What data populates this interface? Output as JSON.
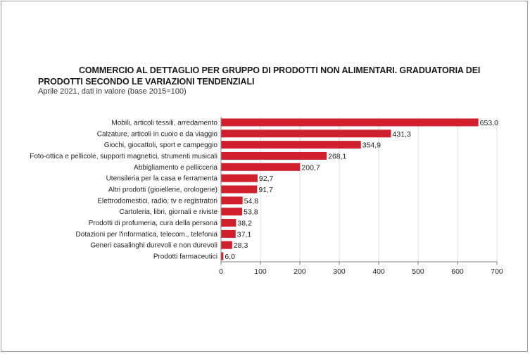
{
  "chart_data": {
    "type": "bar",
    "orientation": "horizontal",
    "title": "COMMERCIO AL DETTAGLIO PER GRUPPO DI PRODOTTI NON ALIMENTARI. GRADUATORIA DEI PRODOTTI SECONDO LE VARIAZIONI TENDENZIALI",
    "subtitle": "Aprile 2021, dati in valore (base 2015=100)",
    "categories": [
      "Mobili, articoli tessili, arredamento",
      "Calzature, articoli in cuoio e da viaggio",
      "Giochi, giocattoli, sport e campeggio",
      "Foto-ottica e pellicole, supporti magnetici, strumenti  musicali",
      "Abbigliamento e pellicceria",
      "Utensileria per la casa e ferramenta",
      "Altri prodotti (gioiellerie, orologerie)",
      "Elettrodomestici, radio, tv e registratori",
      "Cartoleria, libri, giornali e riviste",
      "Prodotti di profumeria, cura della persona",
      "Dotazioni per l'informatica, telecom., telefonia",
      "Generi casalinghi durevoli e non durevoli",
      "Prodotti farmaceutici"
    ],
    "values": [
      653.0,
      431.3,
      354.9,
      268.1,
      200.7,
      92.7,
      91.7,
      54.8,
      53.8,
      38.2,
      37.1,
      28.3,
      6.0
    ],
    "value_labels": [
      "653,0",
      "431,3",
      "354,9",
      "268,1",
      "200,7",
      "92,7",
      "91,7",
      "54,8",
      "53,8",
      "38,2",
      "37,1",
      "28,3",
      "6,0"
    ],
    "xlim": [
      0,
      700
    ],
    "xticks": [
      0,
      100,
      200,
      300,
      400,
      500,
      600,
      700
    ],
    "bar_color": "#d0202e",
    "grid": "vertical"
  }
}
